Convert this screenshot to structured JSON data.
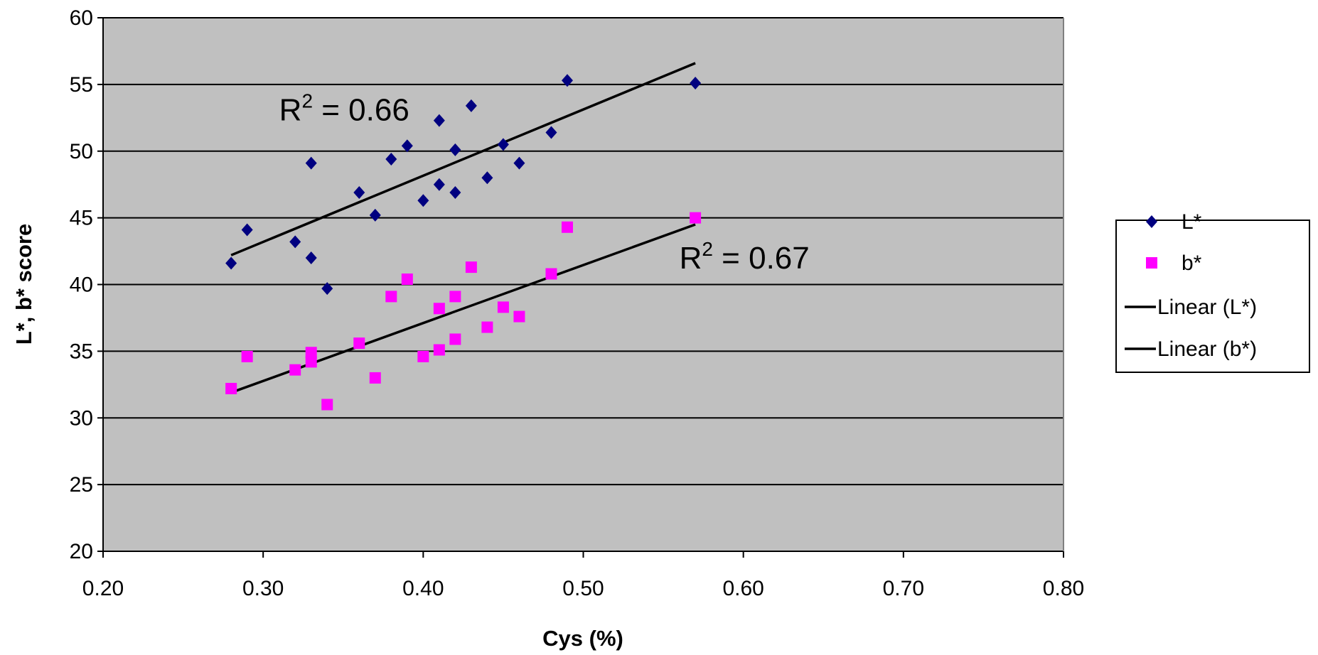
{
  "chart_data": {
    "type": "scatter",
    "xlabel": "Cys (%)",
    "ylabel": "L*, b* score",
    "xlim": [
      0.2,
      0.8
    ],
    "ylim": [
      20,
      60
    ],
    "x_ticks": [
      0.2,
      0.3,
      0.4,
      0.5,
      0.6,
      0.7,
      0.8
    ],
    "x_tick_labels": [
      "0.20",
      "0.30",
      "0.40",
      "0.50",
      "0.60",
      "0.70",
      "0.80"
    ],
    "y_ticks": [
      20,
      25,
      30,
      35,
      40,
      45,
      50,
      55,
      60
    ],
    "y_tick_labels": [
      "20",
      "25",
      "30",
      "35",
      "40",
      "45",
      "50",
      "55",
      "60"
    ],
    "grid": "horizontal",
    "plot_background": "#c0c0c0",
    "legend_position": "right",
    "series": [
      {
        "name": "L*",
        "marker": "diamond",
        "color": "#000080",
        "points": [
          [
            0.28,
            41.6
          ],
          [
            0.29,
            44.1
          ],
          [
            0.32,
            43.2
          ],
          [
            0.33,
            49.1
          ],
          [
            0.33,
            42.0
          ],
          [
            0.34,
            39.7
          ],
          [
            0.36,
            46.9
          ],
          [
            0.37,
            45.2
          ],
          [
            0.38,
            49.4
          ],
          [
            0.39,
            50.4
          ],
          [
            0.4,
            46.3
          ],
          [
            0.41,
            52.3
          ],
          [
            0.41,
            47.5
          ],
          [
            0.42,
            50.1
          ],
          [
            0.42,
            46.9
          ],
          [
            0.43,
            53.4
          ],
          [
            0.44,
            48.0
          ],
          [
            0.45,
            50.5
          ],
          [
            0.46,
            49.1
          ],
          [
            0.48,
            51.4
          ],
          [
            0.49,
            55.3
          ],
          [
            0.57,
            55.1
          ]
        ]
      },
      {
        "name": "b*",
        "marker": "square",
        "color": "#ff00ff",
        "points": [
          [
            0.28,
            32.2
          ],
          [
            0.29,
            34.6
          ],
          [
            0.32,
            33.6
          ],
          [
            0.33,
            34.9
          ],
          [
            0.33,
            34.2
          ],
          [
            0.34,
            31.0
          ],
          [
            0.36,
            35.6
          ],
          [
            0.37,
            33.0
          ],
          [
            0.38,
            39.1
          ],
          [
            0.39,
            40.4
          ],
          [
            0.4,
            34.6
          ],
          [
            0.41,
            38.2
          ],
          [
            0.41,
            35.1
          ],
          [
            0.42,
            39.1
          ],
          [
            0.42,
            35.9
          ],
          [
            0.43,
            41.3
          ],
          [
            0.44,
            36.8
          ],
          [
            0.45,
            38.3
          ],
          [
            0.46,
            37.6
          ],
          [
            0.48,
            40.8
          ],
          [
            0.49,
            44.3
          ],
          [
            0.57,
            45.0
          ]
        ]
      },
      {
        "name": "Linear (L*)",
        "type": "line",
        "color": "#000000",
        "x": [
          0.28,
          0.57
        ],
        "y": [
          42.2,
          56.6
        ]
      },
      {
        "name": "Linear (b*)",
        "type": "line",
        "color": "#000000",
        "x": [
          0.28,
          0.57
        ],
        "y": [
          31.9,
          44.5
        ]
      }
    ],
    "annotations": [
      {
        "base": "R",
        "sup": "2",
        "rest": " = 0.66",
        "x": 0.31,
        "y": 52.3
      },
      {
        "base": "R",
        "sup": "2",
        "rest": " = 0.67",
        "x": 0.56,
        "y": 41.2
      }
    ],
    "legend": [
      {
        "label": "L*",
        "symbol": "diamond",
        "color": "#000080"
      },
      {
        "label": "b*",
        "symbol": "square",
        "color": "#ff00ff"
      },
      {
        "label": "Linear (L*)",
        "symbol": "line",
        "color": "#000000"
      },
      {
        "label": "Linear (b*)",
        "symbol": "line",
        "color": "#000000"
      }
    ]
  }
}
